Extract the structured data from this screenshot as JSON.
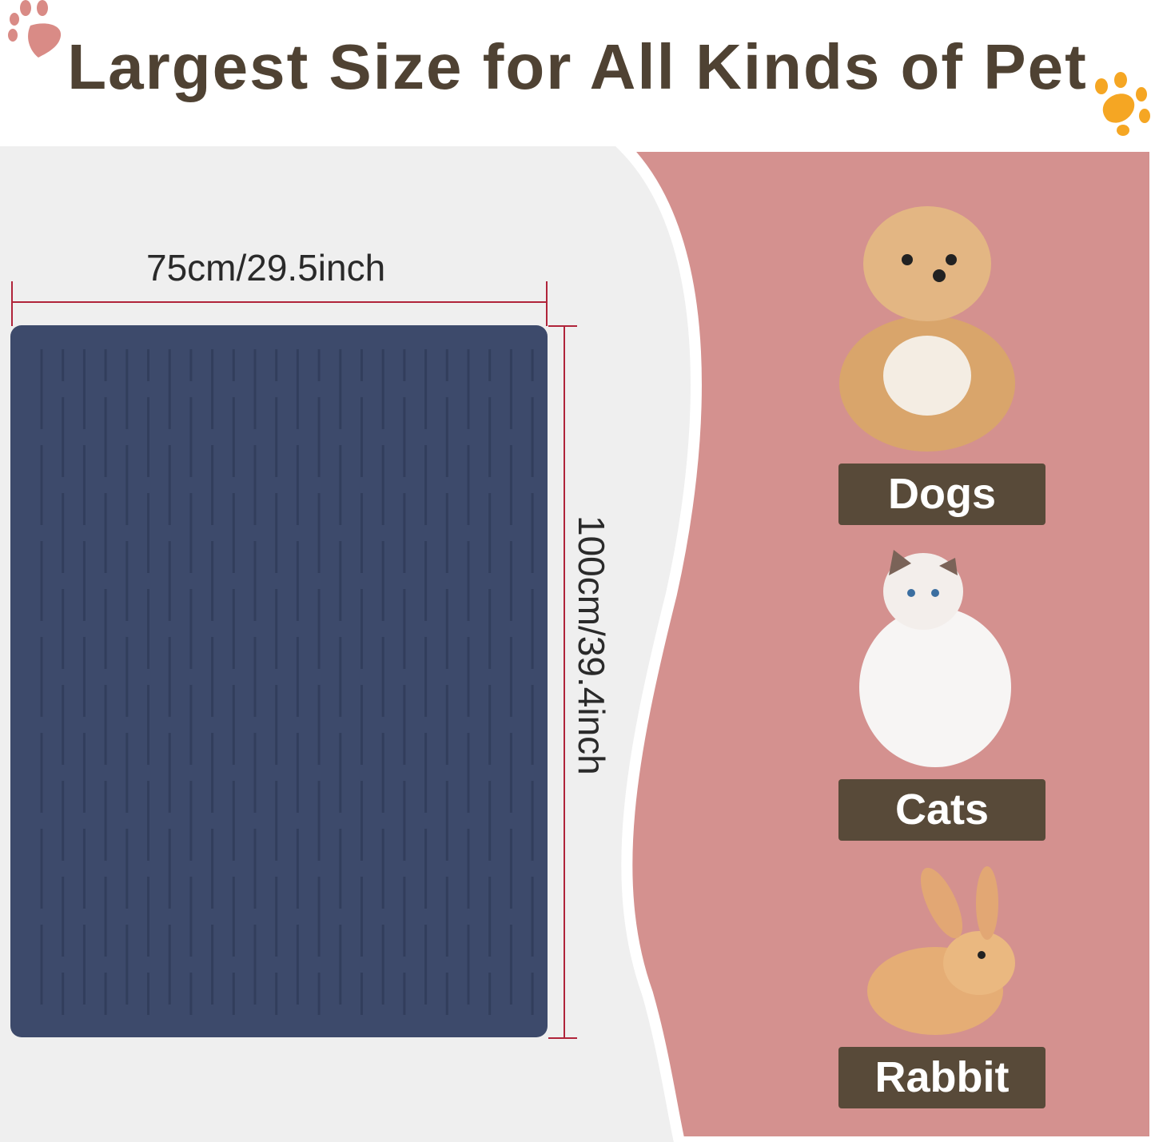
{
  "title": "Largest Size for All Kinds of Pet",
  "dimensions": {
    "width": "75cm/29.5inch",
    "height": "100cm/39.4inch"
  },
  "pets": [
    {
      "label": "Dogs",
      "icon": "dog-image"
    },
    {
      "label": "Cats",
      "icon": "cat-image"
    },
    {
      "label": "Rabbit",
      "icon": "rabbit-image"
    }
  ],
  "colors": {
    "mat": "#3d4a6b",
    "panel": "#d4918f",
    "label_bg": "#584a39",
    "title": "#4f4233",
    "measure_line": "#b0243a",
    "paw_pink": "#d98b86",
    "paw_orange": "#f5a623"
  }
}
